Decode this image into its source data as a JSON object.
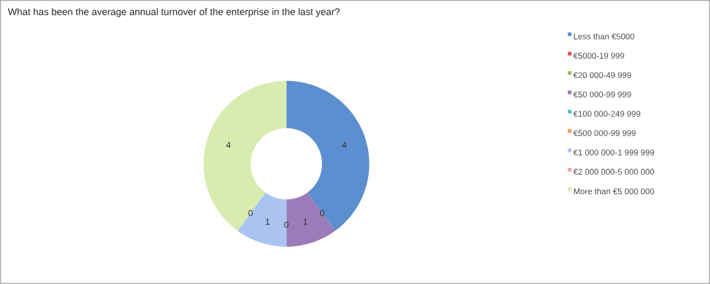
{
  "chart_data": {
    "type": "donut",
    "title": "What has been the average annual turnover of the enterprise in the last year?",
    "categories": [
      "Less than €5000",
      "€5000-19 999",
      "€20 000-49 999",
      "€50 000-99 999",
      "€100 000-249 999",
      "€500 000-99 999",
      "€1 000 000-1 999 999",
      "€2 000 000-5 000 000",
      "More than €5 000 000"
    ],
    "values": [
      4,
      0,
      0,
      1,
      0,
      0,
      1,
      0,
      4
    ],
    "value_labels": [
      "4",
      null,
      "0",
      "1",
      null,
      "0",
      "1",
      "0",
      "4"
    ],
    "colors": [
      "#5b8fd0",
      "#d9534f",
      "#9bc365",
      "#9b7bb8",
      "#4fbfd8",
      "#f59b45",
      "#a9c4f0",
      "#f0a5a5",
      "#d8ecb0"
    ],
    "legend": "right"
  }
}
